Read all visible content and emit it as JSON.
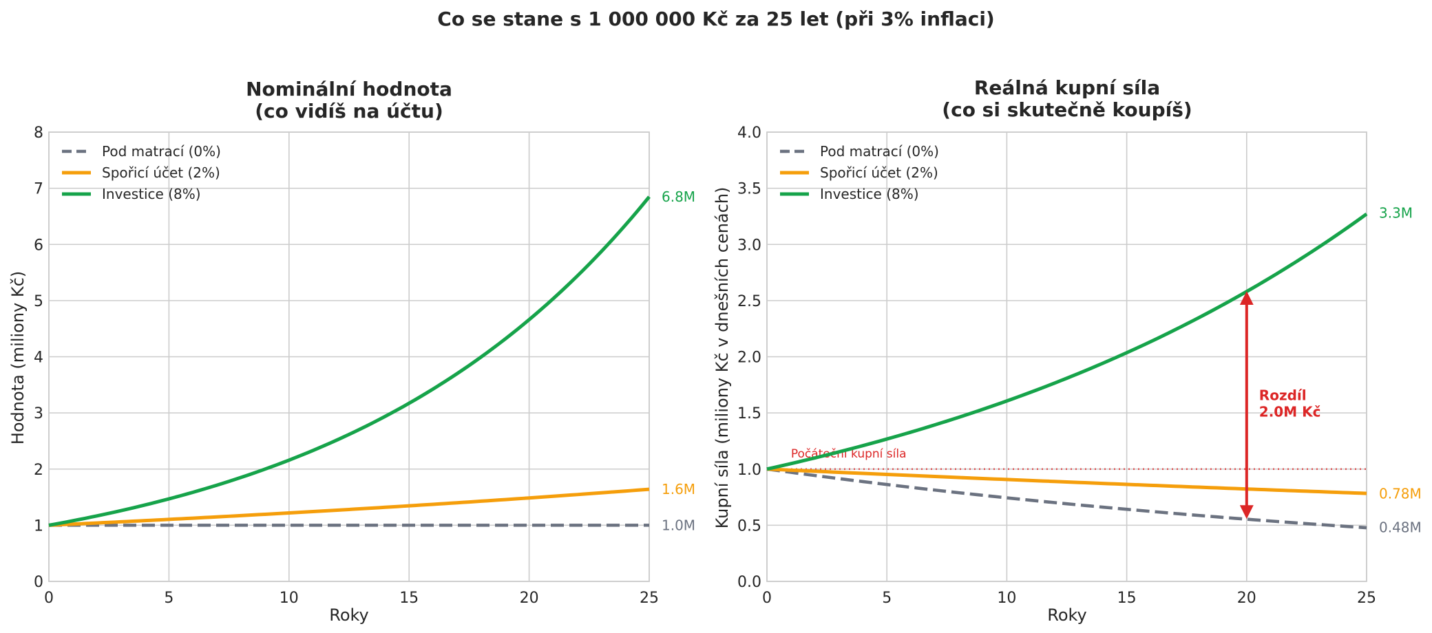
{
  "figure": {
    "suptitle": "Co se stane s 1 000 000 Kč za 25 let (při 3% inflaci)"
  },
  "colors": {
    "mattress": "#6b7280",
    "savings": "#f59e0b",
    "investment": "#16a34a",
    "annotation": "#dc2626",
    "grid": "#cccccc",
    "axis_text": "#262626"
  },
  "chart_data": [
    {
      "id": "nominal",
      "type": "line",
      "title_line1": "Nominální hodnota",
      "title_line2": "(co vidíš na účtu)",
      "xlabel": "Roky",
      "ylabel": "Hodnota (miliony Kč)",
      "xlim": [
        0,
        25
      ],
      "ylim": [
        0,
        8
      ],
      "xticks": [
        0,
        5,
        10,
        15,
        20,
        25
      ],
      "yticks": [
        0,
        1,
        2,
        3,
        4,
        5,
        6,
        7,
        8
      ],
      "ytick_labels": [
        "0",
        "1",
        "2",
        "3",
        "4",
        "5",
        "6",
        "7",
        "8"
      ],
      "grid": true,
      "legend_placement": "top-left",
      "series": [
        {
          "key": "mattress",
          "name": "Pod matrací (0%)",
          "rate": 0.0,
          "style": "dashed",
          "end_label": "1.0M",
          "x": [
            0,
            5,
            10,
            15,
            20,
            25
          ],
          "values": [
            1.0,
            1.0,
            1.0,
            1.0,
            1.0,
            1.0
          ]
        },
        {
          "key": "savings",
          "name": "Spořicí účet (2%)",
          "rate": 0.02,
          "style": "solid",
          "end_label": "1.6M",
          "x": [
            0,
            5,
            10,
            15,
            20,
            25
          ],
          "values": [
            1.0,
            1.1,
            1.22,
            1.35,
            1.49,
            1.64
          ]
        },
        {
          "key": "investment",
          "name": "Investice (8%)",
          "rate": 0.08,
          "style": "solid",
          "end_label": "6.8M",
          "x": [
            0,
            5,
            10,
            15,
            20,
            25
          ],
          "values": [
            1.0,
            1.47,
            2.16,
            3.17,
            4.66,
            6.85
          ]
        }
      ]
    },
    {
      "id": "real",
      "type": "line",
      "title_line1": "Reálná kupní síla",
      "title_line2": "(co si skutečně koupíš)",
      "xlabel": "Roky",
      "ylabel": "Kupní síla (miliony Kč v dnešních cenách)",
      "xlim": [
        0,
        25
      ],
      "ylim": [
        0,
        4
      ],
      "xticks": [
        0,
        5,
        10,
        15,
        20,
        25
      ],
      "yticks": [
        0,
        0.5,
        1,
        1.5,
        2,
        2.5,
        3,
        3.5,
        4
      ],
      "ytick_labels": [
        "0.0",
        "0.5",
        "1.0",
        "1.5",
        "2.0",
        "2.5",
        "3.0",
        "3.5",
        "4.0"
      ],
      "grid": true,
      "legend_placement": "top-left",
      "inflation": 0.03,
      "series": [
        {
          "key": "mattress",
          "name": "Pod matrací (0%)",
          "rate": 0.0,
          "style": "dashed",
          "end_label": "0.48M",
          "x": [
            0,
            5,
            10,
            15,
            20,
            25
          ],
          "values": [
            1.0,
            0.86,
            0.74,
            0.64,
            0.55,
            0.48
          ]
        },
        {
          "key": "savings",
          "name": "Spořicí účet (2%)",
          "rate": 0.02,
          "style": "solid",
          "end_label": "0.78M",
          "x": [
            0,
            5,
            10,
            15,
            20,
            25
          ],
          "values": [
            1.0,
            0.95,
            0.91,
            0.86,
            0.82,
            0.78
          ]
        },
        {
          "key": "investment",
          "name": "Investice (8%)",
          "rate": 0.08,
          "style": "solid",
          "end_label": "3.3M",
          "x": [
            0,
            5,
            10,
            15,
            20,
            25
          ],
          "values": [
            1.0,
            1.27,
            1.61,
            2.04,
            2.59,
            3.28
          ]
        }
      ],
      "reference_line": {
        "y": 1.0,
        "label": "Počáteční kupní síla"
      },
      "arrow": {
        "x": 20,
        "y_from": 0.55,
        "y_to": 2.59,
        "label_line1": "Rozdíl",
        "label_line2": "2.0M Kč"
      }
    }
  ]
}
